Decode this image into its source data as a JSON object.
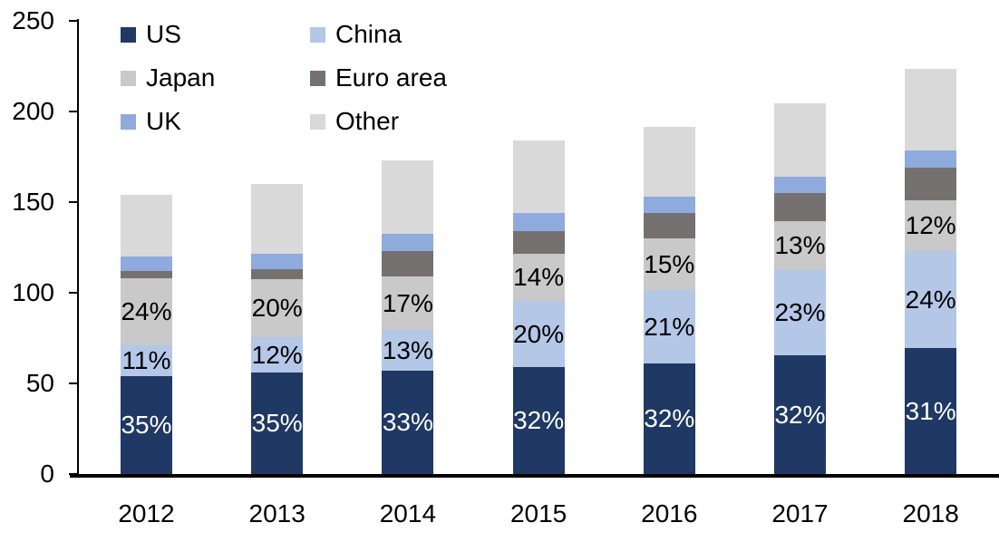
{
  "chart_data": {
    "type": "bar",
    "stacked": true,
    "title": "",
    "categories": [
      "2012",
      "2013",
      "2014",
      "2015",
      "2016",
      "2017",
      "2018"
    ],
    "series": [
      {
        "name": "US",
        "color": "#1F3864",
        "label_color": "#FFFFFF",
        "values": [
          54,
          56,
          57,
          59,
          61,
          65.5,
          69.5
        ],
        "labels": [
          "35%",
          "35%",
          "33%",
          "32%",
          "32%",
          "32%",
          "31%"
        ]
      },
      {
        "name": "China",
        "color": "#B4C7E7",
        "label_color": "#000000",
        "values": [
          17,
          19.5,
          22.5,
          36.5,
          40.5,
          47,
          53.5
        ],
        "labels": [
          "11%",
          "12%",
          "13%",
          "20%",
          "21%",
          "23%",
          "24%"
        ]
      },
      {
        "name": "Japan",
        "color": "#C9C9C9",
        "label_color": "#000000",
        "values": [
          37,
          32,
          29.5,
          26,
          28.5,
          27,
          28
        ],
        "labels": [
          "24%",
          "20%",
          "17%",
          "14%",
          "15%",
          "13%",
          "12%"
        ]
      },
      {
        "name": "Euro area",
        "color": "#767171",
        "label_color": "#000000",
        "values": [
          4,
          5.5,
          14,
          12.5,
          14,
          15.5,
          18
        ],
        "labels": [
          null,
          null,
          null,
          null,
          null,
          null,
          null
        ]
      },
      {
        "name": "UK",
        "color": "#8FAADC",
        "label_color": "#000000",
        "values": [
          8,
          8.5,
          9.5,
          10,
          9,
          9,
          9.5
        ],
        "labels": [
          null,
          null,
          null,
          null,
          null,
          null,
          null
        ]
      },
      {
        "name": "Other",
        "color": "#D9D9D9",
        "label_color": "#000000",
        "values": [
          34,
          38.5,
          40.5,
          40,
          38.5,
          40.5,
          45
        ],
        "labels": [
          null,
          null,
          null,
          null,
          null,
          null,
          null
        ]
      }
    ],
    "y_axis": {
      "min": 0,
      "max": 250,
      "step": 50,
      "tick_labels": [
        "0",
        "50",
        "100",
        "150",
        "200",
        "250"
      ]
    },
    "x_axis": {
      "tick_labels": [
        "2012",
        "2013",
        "2014",
        "2015",
        "2016",
        "2017",
        "2018"
      ]
    },
    "legend": {
      "position": "top-left",
      "columns": 2,
      "entries": [
        "US",
        "China",
        "Japan",
        "Euro area",
        "UK",
        "Other"
      ]
    },
    "grid": false,
    "axis_color": "#000000",
    "background": "#FFFFFF"
  }
}
